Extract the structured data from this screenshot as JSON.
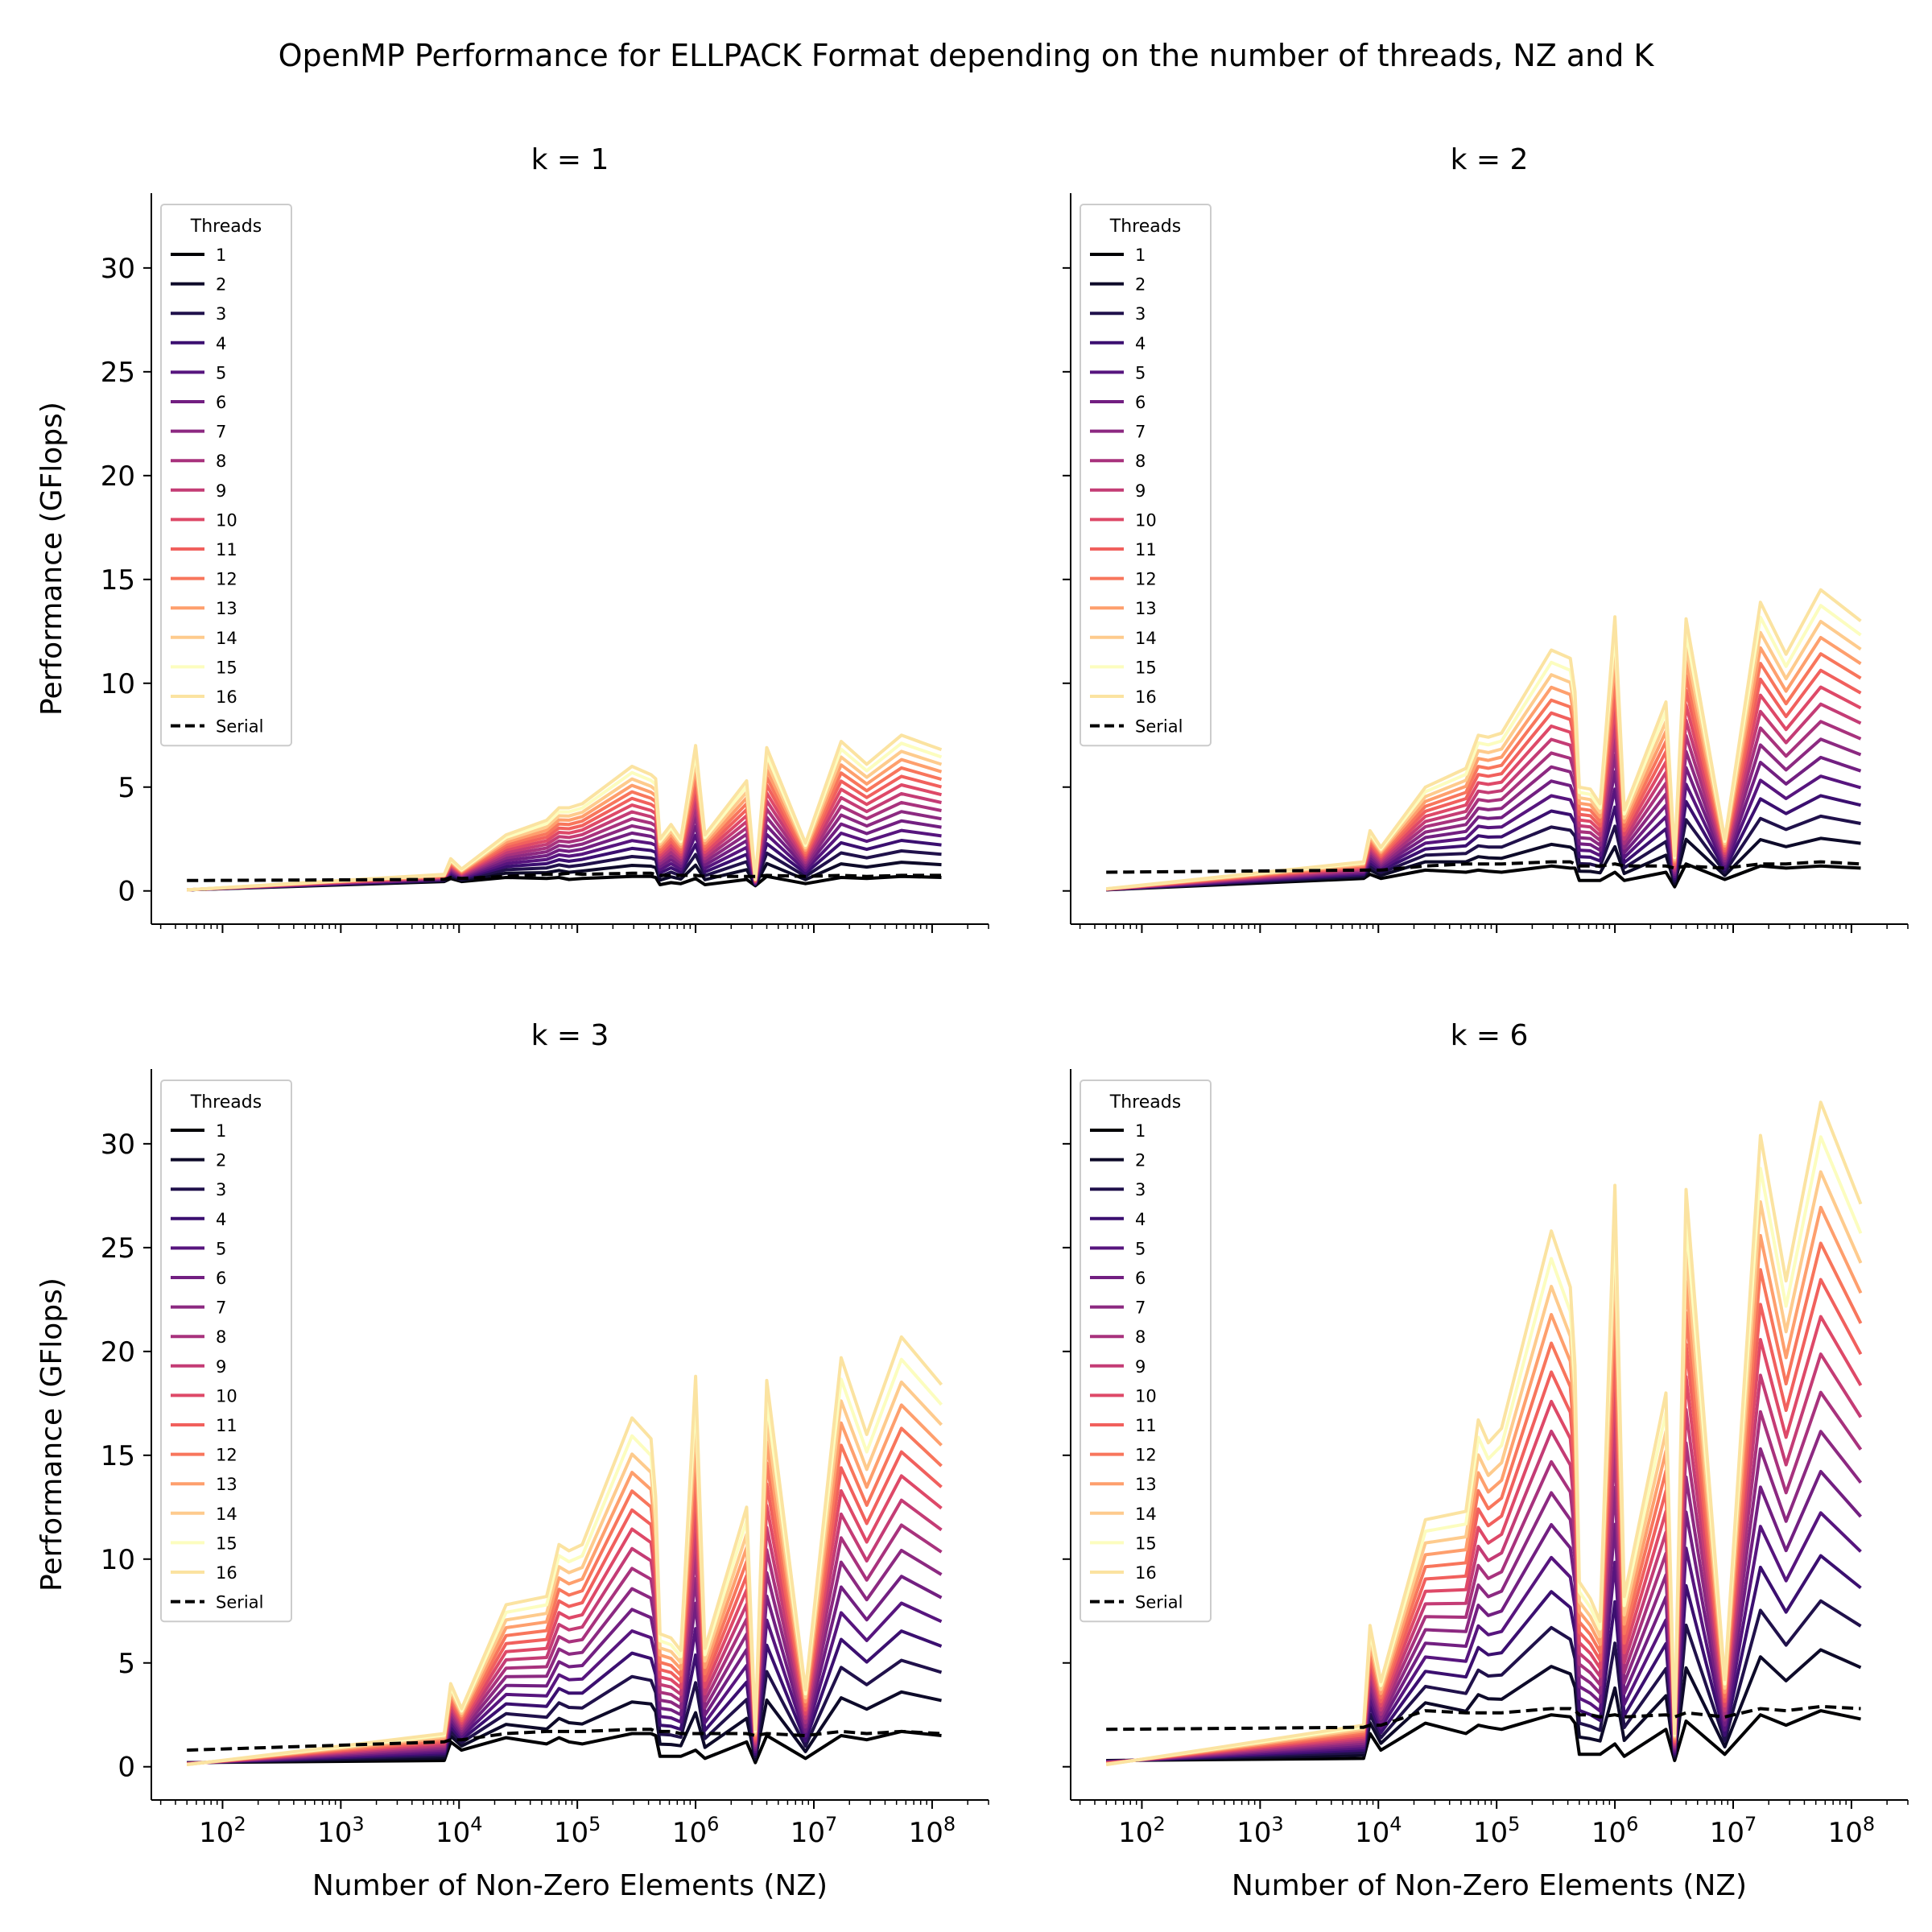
{
  "figure": {
    "title": "OpenMP Performance for ELLPACK Format depending on the number of threads, NZ and K"
  },
  "palette": {
    "thread_colors": [
      "#000004",
      "#0d0a29",
      "#20114b",
      "#3b0f70",
      "#57157e",
      "#721f81",
      "#8c2981",
      "#a8327d",
      "#c43c75",
      "#de4968",
      "#f1605d",
      "#f8765c",
      "#fe9f6d",
      "#fecb8d",
      "#fcfdbf",
      "#fbe3a1"
    ],
    "serial_color": "#000000"
  },
  "chart_data": {
    "type": "line",
    "xlabel": "Number of Non-Zero Elements (NZ)",
    "ylabel": "Performance (GFlops)",
    "xscale": "log",
    "xlim": [
      25,
      300000000
    ],
    "ylim": [
      -1.6,
      33.6
    ],
    "xticks": [
      100,
      1000,
      10000,
      100000,
      1000000,
      10000000,
      100000000
    ],
    "xtick_labels": [
      {
        "b": "10",
        "e": "2"
      },
      {
        "b": "10",
        "e": "3"
      },
      {
        "b": "10",
        "e": "4"
      },
      {
        "b": "10",
        "e": "5"
      },
      {
        "b": "10",
        "e": "6"
      },
      {
        "b": "10",
        "e": "7"
      },
      {
        "b": "10",
        "e": "8"
      }
    ],
    "yticks": [
      0,
      5,
      10,
      15,
      20,
      25,
      30
    ],
    "legend": {
      "title": "Threads",
      "placement": "upper left",
      "serial_label": "Serial"
    },
    "threads": [
      1,
      2,
      3,
      4,
      5,
      6,
      7,
      8,
      9,
      10,
      11,
      12,
      13,
      14,
      15,
      16
    ],
    "x": [
      50,
      7500,
      8500,
      10500,
      25000,
      55000,
      70000,
      85000,
      110000,
      290000,
      420000,
      460000,
      500000,
      620000,
      750000,
      1000000,
      1200000,
      2700000,
      3200000,
      4000000,
      8500000,
      17000000,
      28000000,
      55000000,
      120000000
    ],
    "panels": [
      {
        "title": "k = 1",
        "top": [
          0.05,
          0.8,
          1.55,
          1.05,
          2.7,
          3.4,
          4.0,
          4.0,
          4.2,
          6.0,
          5.6,
          5.4,
          2.5,
          3.2,
          2.5,
          7.0,
          2.7,
          5.3,
          0.6,
          6.9,
          2.3,
          7.2,
          6.1,
          7.5,
          6.8
        ],
        "base": [
          0.05,
          0.45,
          0.6,
          0.45,
          0.65,
          0.6,
          0.65,
          0.55,
          0.6,
          0.7,
          0.7,
          0.65,
          0.3,
          0.4,
          0.35,
          0.6,
          0.3,
          0.55,
          0.25,
          0.7,
          0.35,
          0.65,
          0.6,
          0.7,
          0.65
        ],
        "serial": [
          0.5,
          0.55,
          0.65,
          0.6,
          0.7,
          0.8,
          0.8,
          0.85,
          0.8,
          0.85,
          0.85,
          0.8,
          0.75,
          0.75,
          0.75,
          0.75,
          0.7,
          0.7,
          0.7,
          0.75,
          0.7,
          0.75,
          0.7,
          0.75,
          0.75
        ]
      },
      {
        "title": "k = 2",
        "top": [
          0.1,
          1.4,
          2.9,
          2.1,
          5.0,
          5.9,
          7.5,
          7.4,
          7.6,
          11.6,
          11.2,
          9.6,
          5.0,
          4.9,
          4.2,
          13.2,
          3.9,
          9.1,
          1.7,
          13.1,
          2.5,
          13.9,
          11.4,
          14.5,
          13.0
        ],
        "base": [
          0.05,
          0.6,
          0.8,
          0.6,
          1.0,
          0.9,
          1.0,
          0.95,
          0.9,
          1.2,
          1.1,
          1.1,
          0.5,
          0.5,
          0.5,
          0.9,
          0.5,
          0.9,
          0.2,
          1.3,
          0.55,
          1.2,
          1.1,
          1.2,
          1.1
        ],
        "serial": [
          0.9,
          1.0,
          1.0,
          1.0,
          1.2,
          1.3,
          1.3,
          1.3,
          1.3,
          1.4,
          1.4,
          1.3,
          1.2,
          1.2,
          1.2,
          1.3,
          1.2,
          1.2,
          1.1,
          1.2,
          1.1,
          1.3,
          1.3,
          1.4,
          1.3
        ]
      },
      {
        "title": "k = 3",
        "top": [
          0.1,
          1.6,
          4.0,
          2.8,
          7.8,
          8.2,
          10.7,
          10.4,
          10.7,
          16.8,
          15.8,
          13.0,
          6.4,
          6.2,
          5.6,
          18.8,
          5.7,
          12.5,
          1.8,
          18.6,
          3.7,
          19.7,
          16.0,
          20.7,
          18.4
        ],
        "base": [
          0.2,
          0.3,
          1.2,
          0.8,
          1.4,
          1.1,
          1.4,
          1.2,
          1.1,
          1.6,
          1.6,
          1.5,
          0.5,
          0.5,
          0.5,
          0.8,
          0.4,
          1.2,
          0.2,
          1.5,
          0.4,
          1.5,
          1.3,
          1.7,
          1.5
        ],
        "serial": [
          0.8,
          1.2,
          1.3,
          1.3,
          1.6,
          1.7,
          1.7,
          1.7,
          1.7,
          1.8,
          1.8,
          1.7,
          1.7,
          1.7,
          1.6,
          1.6,
          1.6,
          1.6,
          1.5,
          1.6,
          1.5,
          1.7,
          1.6,
          1.7,
          1.6
        ]
      },
      {
        "title": "k = 6",
        "top": [
          0.1,
          2.0,
          6.8,
          4.1,
          11.9,
          12.3,
          16.7,
          15.6,
          16.3,
          25.8,
          23.1,
          19.3,
          8.9,
          8.1,
          7.0,
          28.0,
          8.2,
          18.0,
          1.6,
          27.8,
          4.2,
          30.4,
          23.4,
          32.0,
          27.1
        ],
        "base": [
          0.3,
          0.4,
          1.6,
          0.8,
          2.1,
          1.6,
          2.0,
          1.9,
          1.8,
          2.5,
          2.4,
          2.1,
          0.6,
          0.6,
          0.6,
          1.1,
          0.5,
          1.8,
          0.3,
          2.2,
          0.6,
          2.5,
          2.0,
          2.7,
          2.3
        ],
        "serial": [
          1.8,
          1.9,
          2.0,
          2.0,
          2.7,
          2.6,
          2.6,
          2.6,
          2.6,
          2.8,
          2.8,
          2.7,
          2.5,
          2.5,
          2.4,
          2.5,
          2.4,
          2.5,
          2.4,
          2.6,
          2.4,
          2.8,
          2.7,
          2.9,
          2.8
        ]
      }
    ]
  }
}
